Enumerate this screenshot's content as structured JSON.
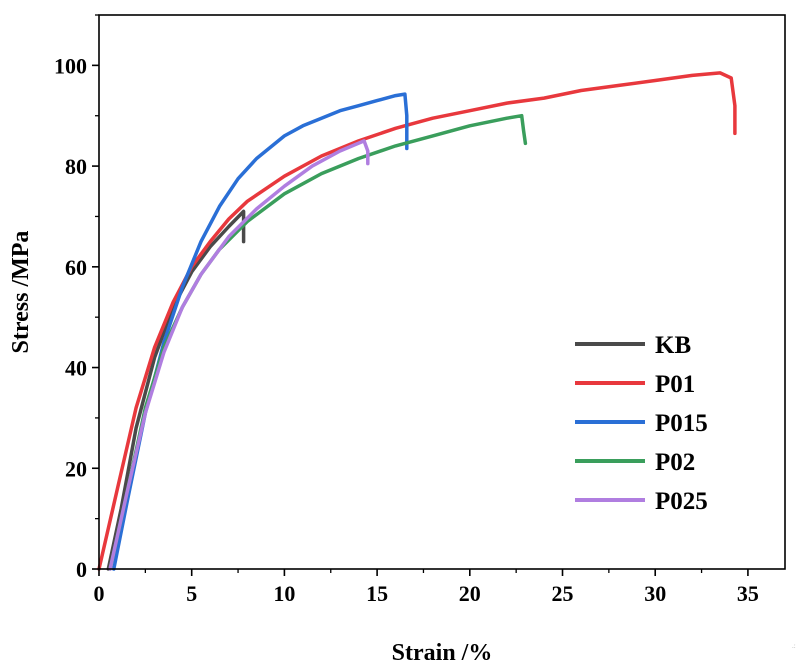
{
  "chart_data": {
    "type": "line",
    "title": "",
    "xlabel": "Strain /%",
    "ylabel": "Stress /MPa",
    "xlim": [
      0,
      37
    ],
    "ylim": [
      0,
      110
    ],
    "xticks": [
      0,
      5,
      10,
      15,
      20,
      25,
      30,
      35
    ],
    "yticks": [
      0,
      20,
      40,
      60,
      80,
      100
    ],
    "xtick_labels": [
      "0",
      "5",
      "10",
      "15",
      "20",
      "25",
      "30",
      "35"
    ],
    "ytick_labels": [
      "0",
      "20",
      "40",
      "60",
      "80",
      "100"
    ],
    "grid": false,
    "legend_position": "bottom-right",
    "series": [
      {
        "name": "KB",
        "color": "#4a4a4a",
        "x": [
          0.5,
          1.2,
          2.0,
          3.0,
          4.0,
          5.0,
          6.0,
          7.0,
          7.8,
          7.8
        ],
        "y": [
          0,
          12,
          28,
          42,
          52,
          59,
          64,
          68,
          71,
          65
        ]
      },
      {
        "name": "P01",
        "color": "#e8383d",
        "x": [
          0,
          1,
          2,
          3,
          4,
          5,
          6,
          7,
          8,
          10,
          12,
          14,
          16,
          18,
          20,
          22,
          24,
          26,
          28,
          30,
          32,
          33.5,
          34.1,
          34.3,
          34.3
        ],
        "y": [
          0,
          16,
          32,
          44,
          53,
          60,
          65,
          69.5,
          73,
          78,
          82,
          85,
          87.5,
          89.5,
          91,
          92.5,
          93.5,
          95,
          96,
          97,
          98,
          98.5,
          97.5,
          92,
          86.5
        ]
      },
      {
        "name": "P015",
        "color": "#2a6fd6",
        "x": [
          0.8,
          1.5,
          2.5,
          3.5,
          4.5,
          5.5,
          6.5,
          7.5,
          8.5,
          10,
          11,
          12,
          13,
          14,
          15,
          16,
          16.5,
          16.6,
          16.6
        ],
        "y": [
          0,
          13,
          31,
          45,
          56,
          65,
          72,
          77.5,
          81.5,
          86,
          88,
          89.5,
          91,
          92,
          93,
          94,
          94.3,
          90,
          83.5
        ]
      },
      {
        "name": "P02",
        "color": "#3a9e5c",
        "x": [
          0.6,
          1.5,
          2.5,
          3.5,
          4.5,
          5.5,
          6.5,
          8,
          10,
          12,
          14,
          16,
          18,
          20,
          22,
          22.8,
          22.9,
          23.0
        ],
        "y": [
          0,
          15,
          32,
          44,
          52,
          58.5,
          63.5,
          69,
          74.5,
          78.5,
          81.5,
          84,
          86,
          88,
          89.5,
          90,
          87,
          84.5
        ]
      },
      {
        "name": "P025",
        "color": "#b07ee0",
        "x": [
          0.6,
          1.5,
          2.5,
          3.5,
          4.5,
          5.5,
          7,
          8.5,
          10,
          11.5,
          13,
          14.3,
          14.5,
          14.5
        ],
        "y": [
          0,
          15,
          31,
          43,
          52,
          58.5,
          66,
          71.5,
          76,
          80,
          83,
          85,
          83,
          80.5
        ]
      }
    ]
  }
}
